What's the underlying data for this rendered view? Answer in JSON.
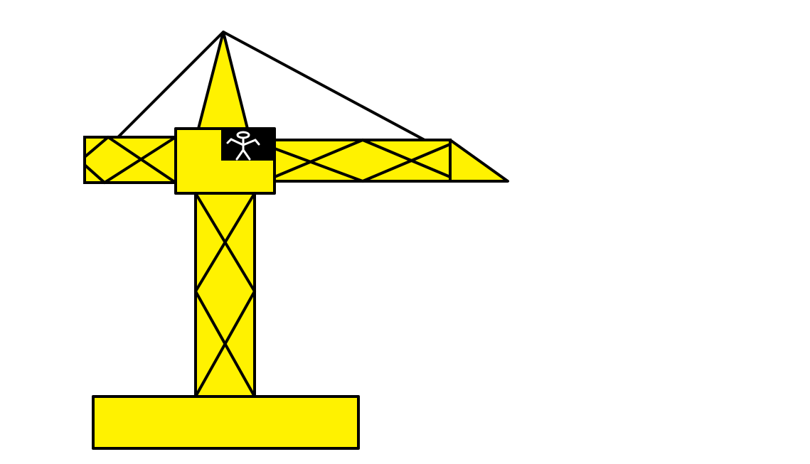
{
  "scene": {
    "subject": "tower-crane",
    "colors": {
      "background": "#ffffff",
      "steel": "#fff200",
      "outline": "#000000",
      "cabin_window": "#000000",
      "operator": "#ffffff"
    }
  }
}
